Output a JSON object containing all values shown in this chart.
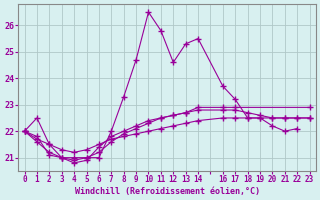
{
  "xlabel": "Windchill (Refroidissement éolien,°C)",
  "line_color": "#990099",
  "bg_color": "#d8f0f0",
  "grid_color": "#b0c8c8",
  "ylim": [
    20.5,
    26.8
  ],
  "xlim": [
    -0.5,
    23.5
  ],
  "yticks": [
    21,
    22,
    23,
    24,
    25,
    26
  ],
  "xticks": [
    0,
    1,
    2,
    3,
    4,
    5,
    6,
    7,
    8,
    9,
    10,
    11,
    12,
    13,
    14,
    15,
    16,
    17,
    18,
    19,
    20,
    21,
    22,
    23
  ],
  "xtick_labels": [
    "0",
    "1",
    "2",
    "3",
    "4",
    "5",
    "6",
    "7",
    "8",
    "9",
    "10",
    "11",
    "12",
    "13",
    "14",
    "",
    "16",
    "17",
    "18",
    "19",
    "20",
    "21",
    "22",
    "23"
  ],
  "series": [
    [
      22.0,
      22.5,
      21.5,
      21.0,
      21.0,
      21.0,
      21.0,
      22.0,
      23.3,
      24.7,
      26.5,
      25.8,
      24.6,
      25.3,
      25.5,
      23.7,
      23.2,
      22.5,
      22.5,
      22.2,
      22.0,
      22.1
    ],
    [
      22.0,
      21.8,
      21.1,
      21.0,
      20.8,
      20.9,
      21.4,
      21.8,
      22.0,
      22.2,
      22.4,
      22.5,
      22.6,
      22.7,
      22.9,
      22.9,
      22.9,
      22.9
    ],
    [
      22.0,
      21.7,
      21.5,
      21.3,
      21.2,
      21.3,
      21.5,
      21.7,
      21.8,
      21.9,
      22.0,
      22.1,
      22.2,
      22.3,
      22.4,
      22.5,
      22.5,
      22.5,
      22.5,
      22.5,
      22.5,
      22.5,
      22.5
    ],
    [
      22.0,
      21.6,
      21.2,
      21.0,
      20.9,
      21.0,
      21.2,
      21.6,
      21.9,
      22.1,
      22.3,
      22.5,
      22.6,
      22.7,
      22.8,
      22.8,
      22.8,
      22.7,
      22.6,
      22.5,
      22.5,
      22.5,
      22.5
    ]
  ],
  "x_series": [
    [
      0,
      1,
      2,
      3,
      4,
      5,
      6,
      7,
      8,
      9,
      10,
      11,
      12,
      13,
      14,
      16,
      17,
      18,
      19,
      20,
      21,
      22
    ],
    [
      0,
      1,
      2,
      3,
      4,
      5,
      6,
      7,
      8,
      9,
      10,
      11,
      12,
      13,
      14,
      16,
      17,
      23
    ],
    [
      0,
      1,
      2,
      3,
      4,
      5,
      6,
      7,
      8,
      9,
      10,
      11,
      12,
      13,
      14,
      16,
      17,
      18,
      19,
      20,
      21,
      22,
      23
    ],
    [
      0,
      1,
      2,
      3,
      4,
      5,
      6,
      7,
      8,
      9,
      10,
      11,
      12,
      13,
      14,
      16,
      17,
      18,
      19,
      20,
      21,
      22,
      23
    ]
  ]
}
